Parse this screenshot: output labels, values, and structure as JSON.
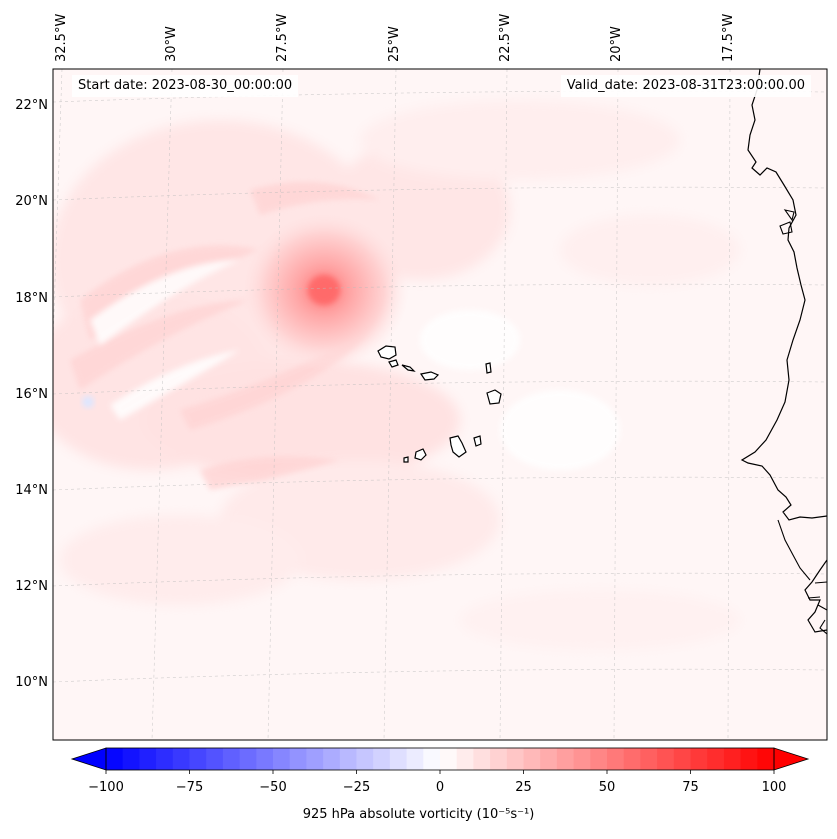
{
  "map": {
    "start_date": "Start date: 2023-08-30_00:00:00",
    "valid_date": "Valid_date: 2023-08-31T23:00:00.00",
    "lon_labels": [
      "32.5°W",
      "30°W",
      "27.5°W",
      "25°W",
      "22.5°W",
      "20°W",
      "17.5°W"
    ],
    "lat_labels": [
      "22°N",
      "20°N",
      "18°N",
      "16°N",
      "14°N",
      "12°N",
      "10°N"
    ],
    "feature_center": {
      "lon": -27.0,
      "lat": 18.3
    }
  },
  "colorbar": {
    "ticks": [
      "−100",
      "−75",
      "−50",
      "−25",
      "0",
      "25",
      "50",
      "75",
      "100"
    ],
    "label": "925 hPa absolute vorticity (10⁻⁵s⁻¹)",
    "min": -100,
    "max": 100,
    "colors": {
      "negative": "#0000ff",
      "zero": "#ffffff",
      "positive": "#ff0000"
    }
  }
}
